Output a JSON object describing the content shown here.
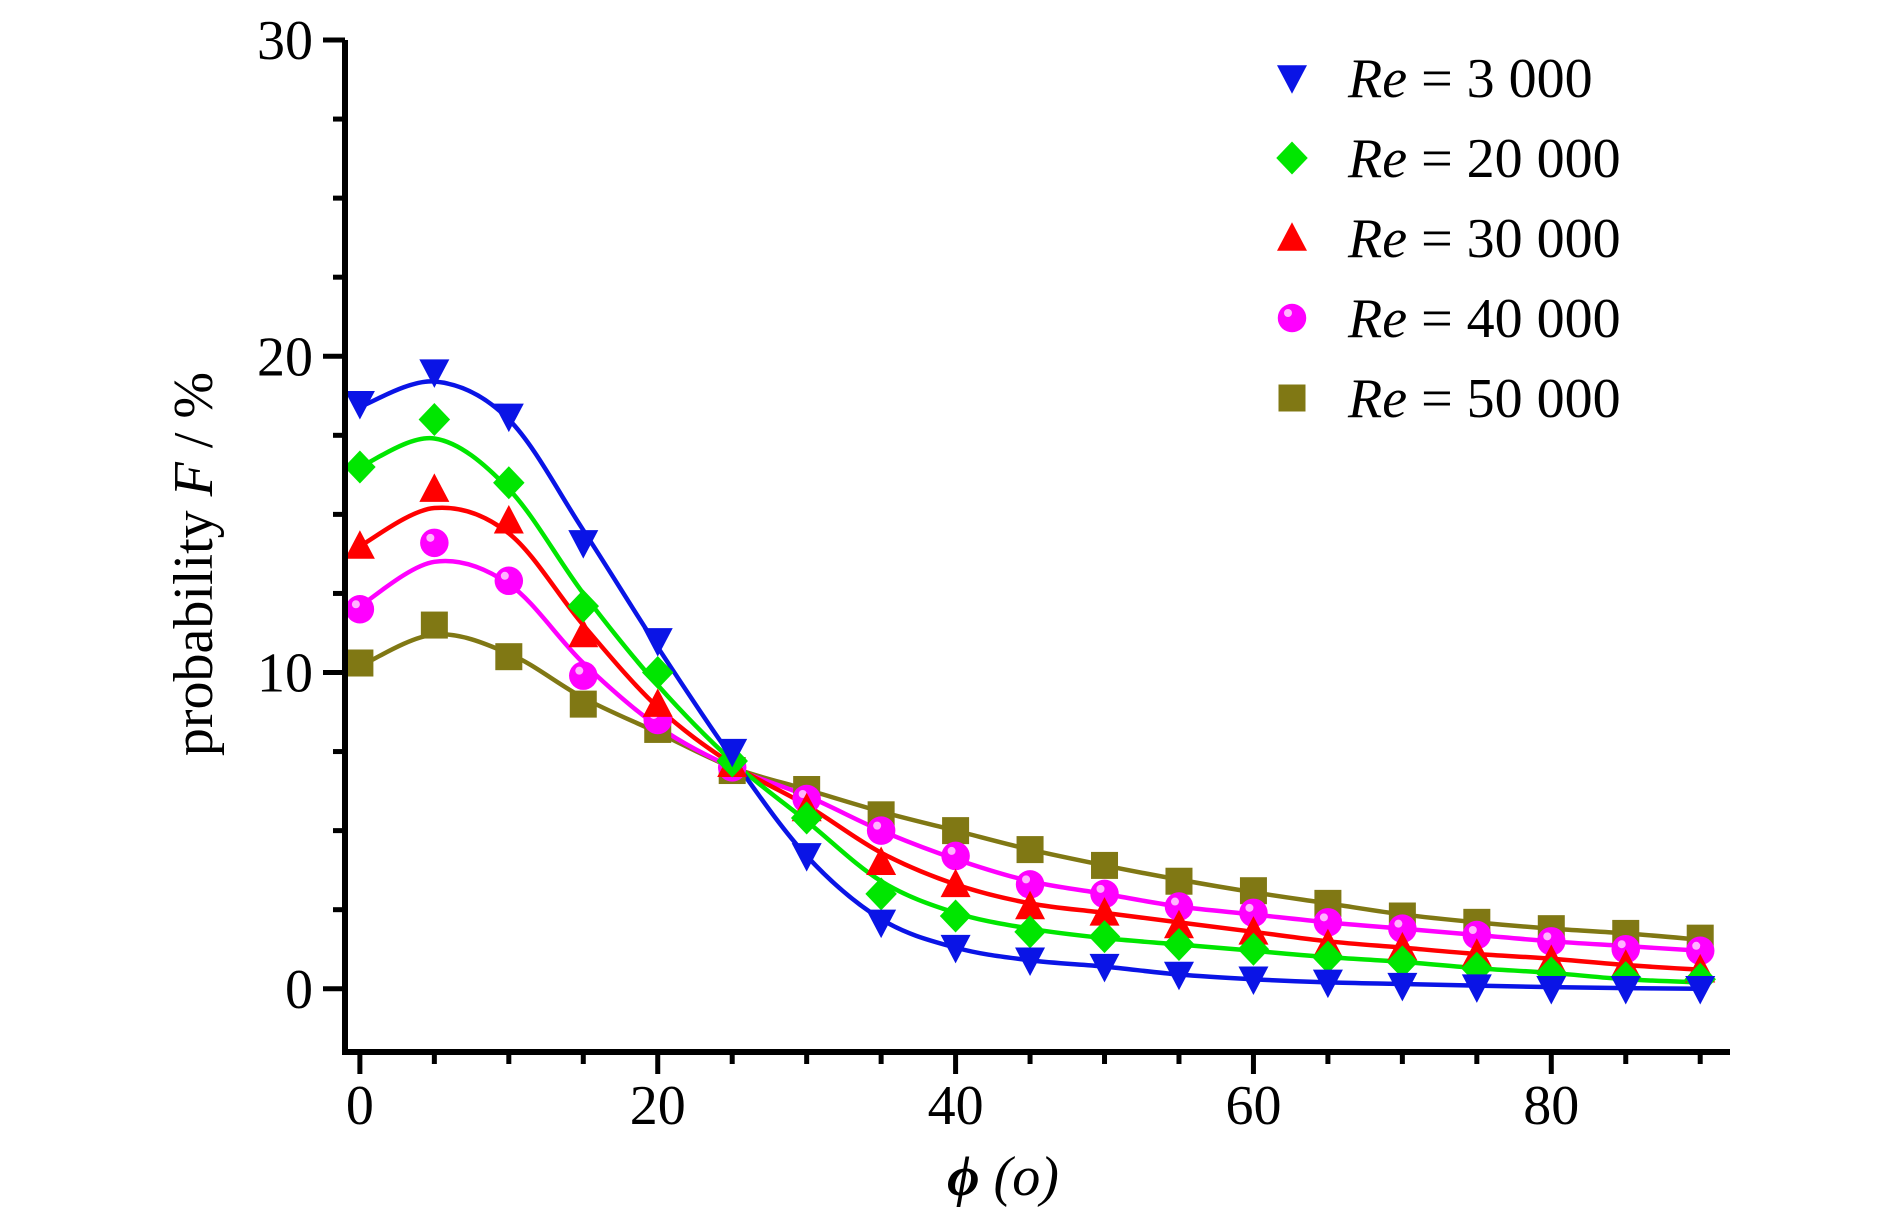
{
  "chart_data": {
    "type": "scatter",
    "xlabel": {
      "symbol": "ϕ",
      "unit": " (o)"
    },
    "ylabel": {
      "prefix": "probability ",
      "var": "F",
      "suffix": " / %"
    },
    "xlim": [
      -1,
      92
    ],
    "ylim": [
      -2,
      30
    ],
    "xticks": [
      0,
      20,
      40,
      60,
      80
    ],
    "yticks": [
      0,
      10,
      20,
      30
    ],
    "grid": false,
    "legend_position": "top-right",
    "x": [
      0,
      5,
      10,
      15,
      20,
      25,
      30,
      35,
      40,
      45,
      50,
      55,
      60,
      65,
      70,
      75,
      80,
      85,
      90
    ],
    "series": [
      {
        "name": "Re = 3 000",
        "name_var": "Re",
        "name_value": "3 000",
        "color": "#0a14e6",
        "marker": "triangle-down",
        "values": [
          18.5,
          19.5,
          18.1,
          14.1,
          11.0,
          7.5,
          4.2,
          2.1,
          1.3,
          0.9,
          0.7,
          0.45,
          0.3,
          0.2,
          0.1,
          0.05,
          0.0,
          0.0,
          0.0
        ],
        "fit": [
          18.4,
          19.2,
          18.0,
          14.5,
          10.8,
          7.3,
          4.2,
          2.2,
          1.3,
          0.9,
          0.7,
          0.45,
          0.3,
          0.2,
          0.15,
          0.1,
          0.05,
          0.02,
          0.0
        ]
      },
      {
        "name": "Re = 20 000",
        "name_var": "Re",
        "name_value": "20 000",
        "color": "#00e600",
        "marker": "diamond",
        "values": [
          16.5,
          18.0,
          16.0,
          12.1,
          10.0,
          7.2,
          5.4,
          3.0,
          2.3,
          1.8,
          1.65,
          1.4,
          1.25,
          1.0,
          0.85,
          0.65,
          0.5,
          0.35,
          0.3
        ],
        "fit": [
          16.5,
          17.4,
          15.8,
          12.5,
          9.6,
          7.2,
          5.3,
          3.4,
          2.4,
          1.9,
          1.6,
          1.4,
          1.2,
          1.0,
          0.85,
          0.65,
          0.5,
          0.3,
          0.2
        ]
      },
      {
        "name": "Re = 30 000",
        "name_var": "Re",
        "name_value": "30 000",
        "color": "#ff0000",
        "marker": "triangle-up",
        "values": [
          14.0,
          15.8,
          14.8,
          11.2,
          9.0,
          7.1,
          5.7,
          4.0,
          3.3,
          2.6,
          2.4,
          2.0,
          1.8,
          1.4,
          1.3,
          1.1,
          0.9,
          0.75,
          0.6
        ],
        "fit": [
          14.0,
          15.2,
          14.4,
          11.5,
          8.9,
          7.1,
          5.8,
          4.3,
          3.3,
          2.7,
          2.4,
          2.1,
          1.8,
          1.5,
          1.3,
          1.1,
          0.95,
          0.75,
          0.6
        ]
      },
      {
        "name": "Re = 40 000",
        "name_var": "Re",
        "name_value": "40 000",
        "color": "#ff00ff",
        "marker": "circle",
        "values": [
          12.0,
          14.1,
          12.9,
          9.9,
          8.5,
          7.0,
          6.0,
          5.0,
          4.2,
          3.3,
          3.0,
          2.6,
          2.4,
          2.1,
          1.9,
          1.7,
          1.5,
          1.25,
          1.2
        ],
        "fit": [
          12.1,
          13.5,
          12.8,
          10.3,
          8.3,
          7.0,
          6.1,
          5.0,
          4.1,
          3.4,
          3.0,
          2.6,
          2.35,
          2.1,
          1.9,
          1.7,
          1.5,
          1.35,
          1.2
        ]
      },
      {
        "name": "Re = 50 000",
        "name_var": "Re",
        "name_value": "50 000",
        "color": "#807814",
        "marker": "square",
        "values": [
          10.3,
          11.5,
          10.5,
          9.0,
          8.2,
          6.9,
          6.3,
          5.5,
          5.0,
          4.4,
          3.9,
          3.4,
          3.1,
          2.7,
          2.3,
          2.1,
          1.9,
          1.75,
          1.6
        ],
        "fit": [
          10.2,
          11.2,
          10.6,
          9.2,
          8.1,
          7.0,
          6.3,
          5.6,
          5.0,
          4.4,
          3.9,
          3.45,
          3.05,
          2.7,
          2.35,
          2.1,
          1.9,
          1.75,
          1.55
        ]
      }
    ]
  }
}
